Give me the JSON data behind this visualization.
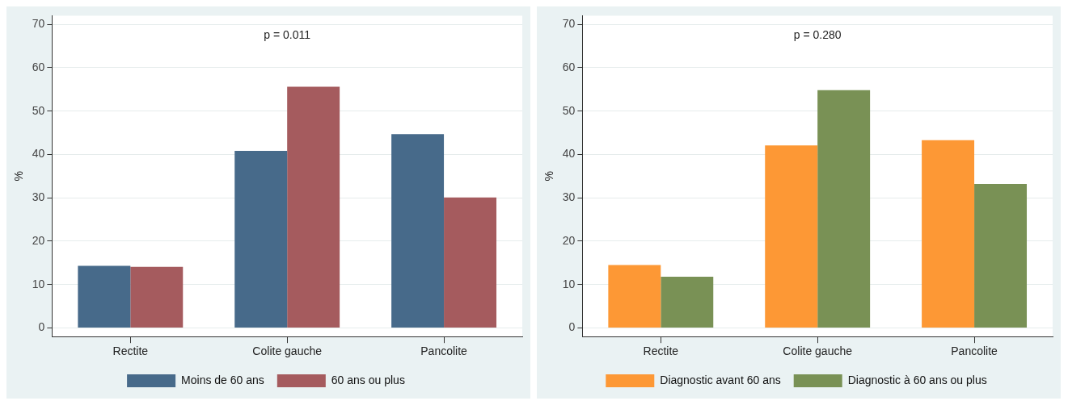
{
  "chart_data": [
    {
      "type": "bar",
      "ylabel": "%",
      "categories": [
        "Rectite",
        "Colite gauche",
        "Pancolite"
      ],
      "series": [
        {
          "name": "Moins de 60 ans",
          "color": "#476a8a",
          "values": [
            14.3,
            40.8,
            44.7
          ]
        },
        {
          "name": "60 ans ou plus",
          "color": "#a55b5e",
          "values": [
            14.1,
            55.6,
            30.1
          ]
        }
      ],
      "ylim": [
        -2,
        72
      ],
      "yticks": [
        0,
        10,
        20,
        30,
        40,
        50,
        60,
        70
      ],
      "grid": "y",
      "legend": "bottom",
      "annotations": [
        "p = 0.011"
      ]
    },
    {
      "type": "bar",
      "ylabel": "%",
      "categories": [
        "Rectite",
        "Colite gauche",
        "Pancolite"
      ],
      "series": [
        {
          "name": "Diagnostic avant 60 ans",
          "color": "#fd9835",
          "values": [
            14.5,
            42.1,
            43.3
          ]
        },
        {
          "name": "Diagnostic à 60 ans ou plus",
          "color": "#799155",
          "values": [
            11.8,
            54.8,
            33.2
          ]
        }
      ],
      "ylim": [
        -2,
        72
      ],
      "yticks": [
        0,
        10,
        20,
        30,
        40,
        50,
        60,
        70
      ],
      "grid": "y",
      "legend": "bottom",
      "annotations": [
        "p = 0.280"
      ]
    }
  ]
}
